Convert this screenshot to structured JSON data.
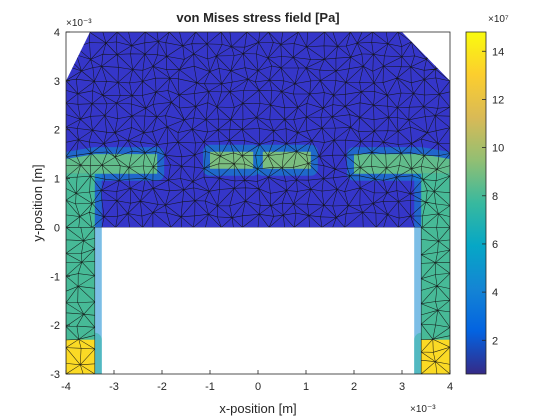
{
  "chart_data": {
    "type": "heatmap",
    "title": "von Mises stress field [Pa]",
    "xlabel": "x-position [m]",
    "ylabel": "y-position [m]",
    "xlim": [
      -4,
      4
    ],
    "ylim": [
      -3,
      4
    ],
    "x_ticks": [
      -4,
      -3,
      -2,
      -1,
      0,
      1,
      2,
      3,
      4
    ],
    "y_ticks": [
      -3,
      -2,
      -1,
      0,
      1,
      2,
      3,
      4
    ],
    "x_exponent": "×10⁻³",
    "y_exponent": "×10⁻³",
    "colorbar": {
      "ticks": [
        2,
        4,
        6,
        8,
        10,
        12,
        14
      ],
      "exponent": "×10⁷",
      "range": [
        0.6,
        14.8
      ],
      "colormap": "parula"
    },
    "grid": false,
    "legend": "none",
    "domain_outline": [
      [
        -4,
        0
      ],
      [
        -4,
        3
      ],
      [
        -3.5,
        4
      ],
      [
        3,
        4
      ],
      [
        4,
        3
      ],
      [
        4,
        0
      ],
      [
        -4,
        0
      ]
    ],
    "stress_regions": [
      {
        "name": "left-leg",
        "polygon": [
          [
            -4,
            -3
          ],
          [
            -3.4,
            -3
          ],
          [
            -3.4,
            1.1
          ],
          [
            -4,
            1.1
          ]
        ],
        "value": 8.0
      },
      {
        "name": "left-leg-base",
        "polygon": [
          [
            -4,
            -3
          ],
          [
            -3.4,
            -3
          ],
          [
            -3.4,
            -2.3
          ],
          [
            -4,
            -2.3
          ]
        ],
        "value": 13.5
      },
      {
        "name": "left-arm",
        "polygon": [
          [
            -4,
            1.1
          ],
          [
            -2.1,
            1.1
          ],
          [
            -2.1,
            1.5
          ],
          [
            -3.4,
            1.5
          ],
          [
            -4,
            1.4
          ]
        ],
        "value": 8.5
      },
      {
        "name": "center-left",
        "polygon": [
          [
            -1,
            1.2
          ],
          [
            -0.1,
            1.2
          ],
          [
            -0.1,
            1.55
          ],
          [
            -1,
            1.55
          ]
        ],
        "value": 9.0
      },
      {
        "name": "center-right",
        "polygon": [
          [
            0.1,
            1.2
          ],
          [
            1.1,
            1.2
          ],
          [
            1.1,
            1.55
          ],
          [
            0.1,
            1.55
          ]
        ],
        "value": 9.0
      },
      {
        "name": "right-arm",
        "polygon": [
          [
            2,
            1.1
          ],
          [
            4,
            1.1
          ],
          [
            4,
            1.4
          ],
          [
            3.4,
            1.5
          ],
          [
            2,
            1.5
          ]
        ],
        "value": 8.5
      },
      {
        "name": "right-leg",
        "polygon": [
          [
            3.4,
            -3
          ],
          [
            4,
            -3
          ],
          [
            4,
            1.1
          ],
          [
            3.4,
            1.1
          ]
        ],
        "value": 8.0
      },
      {
        "name": "right-leg-base",
        "polygon": [
          [
            3.4,
            -3
          ],
          [
            4,
            -3
          ],
          [
            4,
            -2.3
          ],
          [
            3.4,
            -2.3
          ]
        ],
        "value": 13.5
      }
    ],
    "background_value": 1.2,
    "colors": {
      "background_mesh": "#3536c9",
      "mesh_line": "#101010",
      "axis": "#262626"
    }
  }
}
